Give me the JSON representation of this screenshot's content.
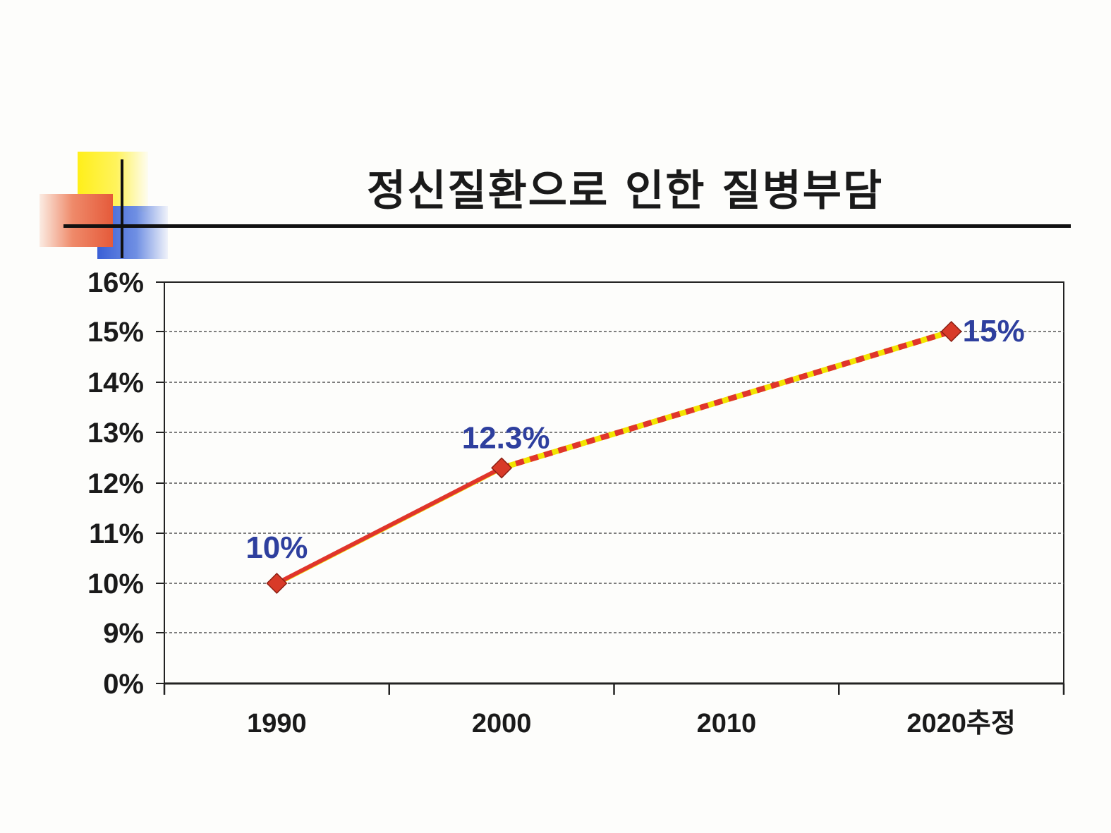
{
  "chart_data": {
    "type": "line",
    "title": "정신질환으로 인한 질병부담",
    "categories": [
      "1990",
      "2000",
      "2010",
      "2020추정"
    ],
    "y_ticks": [
      "0%",
      "9%",
      "10%",
      "11%",
      "12%",
      "13%",
      "14%",
      "15%",
      "16%"
    ],
    "series": [
      {
        "values": [
          10,
          12.3,
          null,
          15
        ],
        "data_labels": [
          "10%",
          "12.3%",
          "",
          "15%"
        ],
        "color": "#e0352b",
        "segments": [
          "solid",
          "dashed-projection"
        ]
      }
    ],
    "grid": true,
    "legend": "none",
    "colors": {
      "line": "#e0352b",
      "marker": "#d83a28",
      "label": "#2e3f9e",
      "dash_accent": "#f2e400"
    }
  }
}
